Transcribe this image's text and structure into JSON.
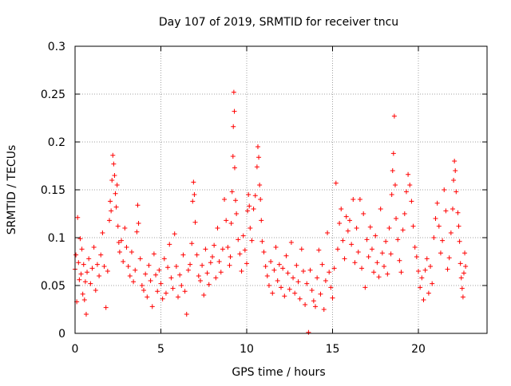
{
  "chart_data": {
    "type": "scatter",
    "title": "Day 107 of 2019, SRMTID for receiver tncu",
    "xlabel": "GPS time / hours",
    "ylabel": "SRMTID / TECUs",
    "xlim": [
      0,
      24
    ],
    "ylim": [
      0,
      0.3
    ],
    "x_ticks": [
      0,
      5,
      10,
      15,
      20
    ],
    "x_tick_labels": [
      "0",
      "5",
      "10",
      "15",
      "20"
    ],
    "y_ticks": [
      0,
      0.05,
      0.1,
      0.15,
      0.2,
      0.25,
      0.3
    ],
    "y_tick_labels": [
      "0",
      "0.05",
      "0.1",
      "0.15",
      "0.2",
      "0.25",
      "0.3"
    ],
    "grid": true,
    "marker": "+",
    "color": "#ff0000",
    "series": [
      {
        "values": [
          [
            0.0,
            0.067
          ],
          [
            0.05,
            0.082
          ],
          [
            0.1,
            0.033
          ],
          [
            0.15,
            0.121
          ],
          [
            0.2,
            0.074
          ],
          [
            0.25,
            0.056
          ],
          [
            0.3,
            0.099
          ],
          [
            0.35,
            0.062
          ],
          [
            0.4,
            0.088
          ],
          [
            0.45,
            0.041
          ],
          [
            0.5,
            0.072
          ],
          [
            0.55,
            0.035
          ],
          [
            0.6,
            0.054
          ],
          [
            0.65,
            0.02
          ],
          [
            0.7,
            0.064
          ],
          [
            0.8,
            0.078
          ],
          [
            0.9,
            0.052
          ],
          [
            1.0,
            0.068
          ],
          [
            1.1,
            0.09
          ],
          [
            1.2,
            0.045
          ],
          [
            1.3,
            0.072
          ],
          [
            1.4,
            0.06
          ],
          [
            1.5,
            0.082
          ],
          [
            1.6,
            0.105
          ],
          [
            1.7,
            0.07
          ],
          [
            1.8,
            0.027
          ],
          [
            1.9,
            0.065
          ],
          [
            2.0,
            0.118
          ],
          [
            2.05,
            0.138
          ],
          [
            2.1,
            0.128
          ],
          [
            2.15,
            0.16
          ],
          [
            2.2,
            0.186
          ],
          [
            2.25,
            0.177
          ],
          [
            2.3,
            0.165
          ],
          [
            2.35,
            0.146
          ],
          [
            2.4,
            0.132
          ],
          [
            2.45,
            0.155
          ],
          [
            2.5,
            0.112
          ],
          [
            2.55,
            0.095
          ],
          [
            2.6,
            0.085
          ],
          [
            2.7,
            0.097
          ],
          [
            2.8,
            0.075
          ],
          [
            2.9,
            0.11
          ],
          [
            3.0,
            0.09
          ],
          [
            3.1,
            0.07
          ],
          [
            3.2,
            0.06
          ],
          [
            3.3,
            0.085
          ],
          [
            3.4,
            0.054
          ],
          [
            3.5,
            0.066
          ],
          [
            3.6,
            0.106
          ],
          [
            3.65,
            0.134
          ],
          [
            3.7,
            0.115
          ],
          [
            3.8,
            0.078
          ],
          [
            3.9,
            0.05
          ],
          [
            4.0,
            0.045
          ],
          [
            4.1,
            0.062
          ],
          [
            4.2,
            0.038
          ],
          [
            4.3,
            0.071
          ],
          [
            4.4,
            0.055
          ],
          [
            4.5,
            0.028
          ],
          [
            4.6,
            0.083
          ],
          [
            4.7,
            0.061
          ],
          [
            4.8,
            0.044
          ],
          [
            4.9,
            0.066
          ],
          [
            5.0,
            0.052
          ],
          [
            5.1,
            0.036
          ],
          [
            5.2,
            0.078
          ],
          [
            5.3,
            0.042
          ],
          [
            5.4,
            0.069
          ],
          [
            5.5,
            0.093
          ],
          [
            5.6,
            0.058
          ],
          [
            5.7,
            0.047
          ],
          [
            5.8,
            0.104
          ],
          [
            5.9,
            0.07
          ],
          [
            6.0,
            0.038
          ],
          [
            6.1,
            0.061
          ],
          [
            6.2,
            0.05
          ],
          [
            6.3,
            0.082
          ],
          [
            6.4,
            0.044
          ],
          [
            6.5,
            0.02
          ],
          [
            6.6,
            0.066
          ],
          [
            6.7,
            0.072
          ],
          [
            6.8,
            0.094
          ],
          [
            6.85,
            0.138
          ],
          [
            6.9,
            0.158
          ],
          [
            6.95,
            0.145
          ],
          [
            7.0,
            0.116
          ],
          [
            7.1,
            0.082
          ],
          [
            7.2,
            0.06
          ],
          [
            7.3,
            0.055
          ],
          [
            7.4,
            0.071
          ],
          [
            7.5,
            0.04
          ],
          [
            7.6,
            0.088
          ],
          [
            7.7,
            0.063
          ],
          [
            7.8,
            0.051
          ],
          [
            7.9,
            0.074
          ],
          [
            8.0,
            0.08
          ],
          [
            8.1,
            0.092
          ],
          [
            8.2,
            0.058
          ],
          [
            8.3,
            0.11
          ],
          [
            8.4,
            0.075
          ],
          [
            8.5,
            0.064
          ],
          [
            8.6,
            0.088
          ],
          [
            8.7,
            0.14
          ],
          [
            8.8,
            0.118
          ],
          [
            8.9,
            0.09
          ],
          [
            9.0,
            0.071
          ],
          [
            9.05,
            0.08
          ],
          [
            9.1,
            0.115
          ],
          [
            9.15,
            0.148
          ],
          [
            9.2,
            0.185
          ],
          [
            9.22,
            0.216
          ],
          [
            9.25,
            0.252
          ],
          [
            9.28,
            0.232
          ],
          [
            9.3,
            0.173
          ],
          [
            9.35,
            0.139
          ],
          [
            9.4,
            0.125
          ],
          [
            9.5,
            0.098
          ],
          [
            9.6,
            0.083
          ],
          [
            9.7,
            0.065
          ],
          [
            9.8,
            0.102
          ],
          [
            9.9,
            0.087
          ],
          [
            10.0,
            0.073
          ],
          [
            10.05,
            0.128
          ],
          [
            10.1,
            0.145
          ],
          [
            10.15,
            0.133
          ],
          [
            10.2,
            0.11
          ],
          [
            10.3,
            0.097
          ],
          [
            10.4,
            0.13
          ],
          [
            10.5,
            0.144
          ],
          [
            10.6,
            0.174
          ],
          [
            10.65,
            0.195
          ],
          [
            10.7,
            0.184
          ],
          [
            10.75,
            0.155
          ],
          [
            10.8,
            0.14
          ],
          [
            10.85,
            0.118
          ],
          [
            10.9,
            0.096
          ],
          [
            11.0,
            0.085
          ],
          [
            11.1,
            0.07
          ],
          [
            11.2,
            0.06
          ],
          [
            11.3,
            0.05
          ],
          [
            11.4,
            0.075
          ],
          [
            11.5,
            0.042
          ],
          [
            11.6,
            0.066
          ],
          [
            11.7,
            0.09
          ],
          [
            11.8,
            0.055
          ],
          [
            11.9,
            0.072
          ],
          [
            12.0,
            0.048
          ],
          [
            12.1,
            0.068
          ],
          [
            12.2,
            0.039
          ],
          [
            12.3,
            0.081
          ],
          [
            12.4,
            0.063
          ],
          [
            12.5,
            0.046
          ],
          [
            12.6,
            0.095
          ],
          [
            12.7,
            0.058
          ],
          [
            12.8,
            0.042
          ],
          [
            12.9,
            0.071
          ],
          [
            13.0,
            0.054
          ],
          [
            13.1,
            0.036
          ],
          [
            13.2,
            0.088
          ],
          [
            13.3,
            0.065
          ],
          [
            13.4,
            0.03
          ],
          [
            13.5,
            0.052
          ],
          [
            13.6,
            0.001
          ],
          [
            13.7,
            0.066
          ],
          [
            13.8,
            0.045
          ],
          [
            13.9,
            0.034
          ],
          [
            14.0,
            0.028
          ],
          [
            14.1,
            0.058
          ],
          [
            14.2,
            0.087
          ],
          [
            14.3,
            0.041
          ],
          [
            14.4,
            0.072
          ],
          [
            14.5,
            0.025
          ],
          [
            14.6,
            0.055
          ],
          [
            14.7,
            0.105
          ],
          [
            14.8,
            0.064
          ],
          [
            14.9,
            0.048
          ],
          [
            15.0,
            0.037
          ],
          [
            15.1,
            0.068
          ],
          [
            15.2,
            0.157
          ],
          [
            15.3,
            0.088
          ],
          [
            15.4,
            0.115
          ],
          [
            15.5,
            0.13
          ],
          [
            15.6,
            0.097
          ],
          [
            15.7,
            0.078
          ],
          [
            15.8,
            0.122
          ],
          [
            15.9,
            0.107
          ],
          [
            16.0,
            0.118
          ],
          [
            16.1,
            0.093
          ],
          [
            16.2,
            0.14
          ],
          [
            16.3,
            0.074
          ],
          [
            16.4,
            0.11
          ],
          [
            16.5,
            0.085
          ],
          [
            16.6,
            0.14
          ],
          [
            16.7,
            0.068
          ],
          [
            16.8,
            0.125
          ],
          [
            16.9,
            0.048
          ],
          [
            17.0,
            0.098
          ],
          [
            17.1,
            0.08
          ],
          [
            17.2,
            0.111
          ],
          [
            17.3,
            0.088
          ],
          [
            17.4,
            0.064
          ],
          [
            17.5,
            0.102
          ],
          [
            17.6,
            0.074
          ],
          [
            17.7,
            0.059
          ],
          [
            17.8,
            0.13
          ],
          [
            17.9,
            0.084
          ],
          [
            18.0,
            0.07
          ],
          [
            18.1,
            0.096
          ],
          [
            18.2,
            0.062
          ],
          [
            18.3,
            0.11
          ],
          [
            18.4,
            0.083
          ],
          [
            18.45,
            0.145
          ],
          [
            18.5,
            0.17
          ],
          [
            18.55,
            0.188
          ],
          [
            18.6,
            0.227
          ],
          [
            18.65,
            0.155
          ],
          [
            18.7,
            0.12
          ],
          [
            18.8,
            0.098
          ],
          [
            18.9,
            0.076
          ],
          [
            19.0,
            0.064
          ],
          [
            19.1,
            0.108
          ],
          [
            19.2,
            0.125
          ],
          [
            19.3,
            0.148
          ],
          [
            19.4,
            0.166
          ],
          [
            19.5,
            0.155
          ],
          [
            19.6,
            0.138
          ],
          [
            19.7,
            0.112
          ],
          [
            19.8,
            0.09
          ],
          [
            19.9,
            0.08
          ],
          [
            20.0,
            0.065
          ],
          [
            20.1,
            0.048
          ],
          [
            20.2,
            0.058
          ],
          [
            20.3,
            0.035
          ],
          [
            20.4,
            0.066
          ],
          [
            20.5,
            0.078
          ],
          [
            20.6,
            0.042
          ],
          [
            20.7,
            0.07
          ],
          [
            20.8,
            0.052
          ],
          [
            20.9,
            0.1
          ],
          [
            21.0,
            0.12
          ],
          [
            21.1,
            0.136
          ],
          [
            21.2,
            0.112
          ],
          [
            21.3,
            0.084
          ],
          [
            21.4,
            0.097
          ],
          [
            21.5,
            0.15
          ],
          [
            21.6,
            0.128
          ],
          [
            21.7,
            0.067
          ],
          [
            21.8,
            0.079
          ],
          [
            21.9,
            0.105
          ],
          [
            22.0,
            0.13
          ],
          [
            22.05,
            0.16
          ],
          [
            22.1,
            0.18
          ],
          [
            22.15,
            0.17
          ],
          [
            22.2,
            0.148
          ],
          [
            22.3,
            0.126
          ],
          [
            22.35,
            0.112
          ],
          [
            22.4,
            0.096
          ],
          [
            22.45,
            0.073
          ],
          [
            22.5,
            0.058
          ],
          [
            22.55,
            0.047
          ],
          [
            22.6,
            0.038
          ],
          [
            22.65,
            0.063
          ],
          [
            22.7,
            0.084
          ],
          [
            22.75,
            0.07
          ]
        ]
      }
    ]
  }
}
